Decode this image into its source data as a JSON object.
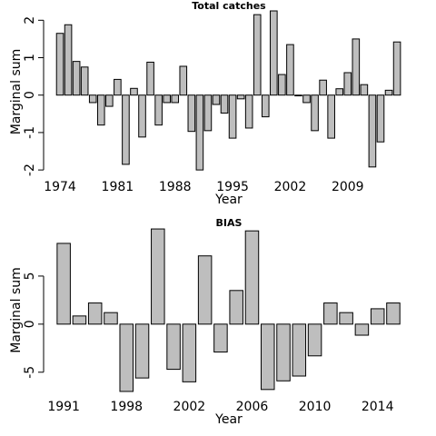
{
  "chart_data": [
    {
      "type": "bar",
      "title": "Total catches",
      "xlabel": "Year",
      "ylabel": "Marginal sum",
      "categories": [
        "1974",
        null,
        null,
        null,
        null,
        null,
        null,
        "1981",
        null,
        null,
        null,
        null,
        null,
        null,
        "1988",
        null,
        null,
        null,
        null,
        null,
        null,
        "1995",
        null,
        null,
        null,
        null,
        null,
        null,
        "2002",
        null,
        null,
        null,
        null,
        null,
        null,
        "2009",
        null,
        null,
        null,
        null,
        null,
        null
      ],
      "values": [
        1.65,
        1.88,
        0.9,
        0.75,
        -0.2,
        -0.8,
        -0.3,
        0.42,
        -1.85,
        0.18,
        -1.12,
        0.88,
        -0.8,
        -0.2,
        -0.2,
        0.77,
        -0.97,
        -2.0,
        -0.95,
        -0.25,
        -0.48,
        -1.15,
        -0.1,
        -0.88,
        2.15,
        -0.58,
        2.25,
        0.55,
        1.35,
        -0.02,
        -0.2,
        -0.95,
        0.4,
        -1.15,
        0.17,
        0.6,
        1.5,
        0.28,
        -1.92,
        -1.25,
        0.13,
        1.42
      ],
      "color": "#bebebe",
      "ylim": [
        -2.07,
        2.25
      ],
      "yticks": [
        -2,
        -1,
        0,
        1,
        2
      ]
    },
    {
      "type": "bar",
      "title": "BIAS",
      "xlabel": "Year",
      "ylabel": "Marginal sum",
      "categories": [
        "1991",
        null,
        null,
        null,
        "1998",
        null,
        null,
        null,
        "2002",
        null,
        null,
        null,
        "2006",
        null,
        null,
        null,
        "2010",
        null,
        null,
        null,
        "2014",
        null
      ],
      "values": [
        8.4,
        0.85,
        2.2,
        1.2,
        -7.0,
        -5.6,
        9.9,
        -4.7,
        -6.0,
        7.1,
        -2.9,
        3.5,
        9.7,
        -6.8,
        -5.9,
        -5.4,
        -3.3,
        2.2,
        1.2,
        -1.15,
        1.6,
        2.2
      ],
      "color": "#bebebe",
      "ylim": [
        -7.1,
        10.0
      ],
      "yticks": [
        -5,
        0,
        5
      ]
    }
  ]
}
